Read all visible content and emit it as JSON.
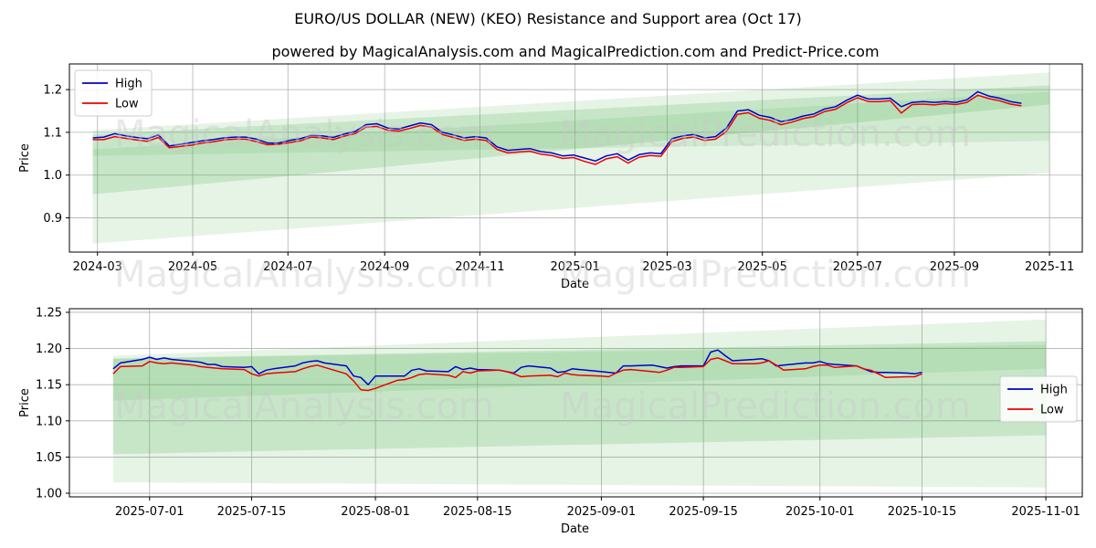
{
  "figure": {
    "title": "EURO/US DOLLAR (NEW) (KEO) Resistance and Support area (Oct 17)",
    "subtitle": "powered by MagicalAnalysis.com and MagicalPrediction.com and Predict-Price.com",
    "watermarks": [
      "MagicalAnalysis.com",
      "MagicalPrediction.com"
    ]
  },
  "colors": {
    "high": "#0000cc",
    "low": "#ee0000",
    "band": "#4caf50",
    "grid": "#b0b0b0"
  },
  "chart_data": [
    {
      "type": "line",
      "xlabel": "Date",
      "ylabel": "Price",
      "grid": true,
      "legend": {
        "placement": "top-left",
        "entries": [
          "High",
          "Low"
        ]
      },
      "xlim": [
        "2024-02-12",
        "2025-11-22"
      ],
      "ylim": [
        0.82,
        1.26
      ],
      "x_ticks": [
        "2024-03",
        "2024-05",
        "2024-07",
        "2024-09",
        "2024-11",
        "2025-01",
        "2025-03",
        "2025-05",
        "2025-07",
        "2025-09",
        "2025-11"
      ],
      "x_tick_dates": [
        "2024-03-01",
        "2024-05-01",
        "2024-07-01",
        "2024-09-01",
        "2024-11-01",
        "2025-01-01",
        "2025-03-01",
        "2025-05-01",
        "2025-07-01",
        "2025-09-01",
        "2025-11-01"
      ],
      "y_ticks": [
        "0.9",
        "1.0",
        "1.1",
        "1.2"
      ],
      "bands": [
        {
          "x": [
            "2024-02-27",
            "2025-11-01"
          ],
          "upper": [
            1.105,
            1.24
          ],
          "lower": [
            0.84,
            1.005
          ],
          "opacity": 0.14
        },
        {
          "x": [
            "2024-02-27",
            "2025-11-01"
          ],
          "upper": [
            1.095,
            1.21
          ],
          "lower": [
            0.955,
            1.165
          ],
          "opacity": 0.2
        },
        {
          "x": [
            "2024-02-27",
            "2025-11-01"
          ],
          "upper": [
            1.06,
            1.195
          ],
          "lower": [
            1.045,
            1.08
          ],
          "opacity": 0.14
        }
      ],
      "series": [
        {
          "name": "High",
          "x": [
            "2024-02-27",
            "2024-03-05",
            "2024-03-12",
            "2024-03-19",
            "2024-03-26",
            "2024-04-02",
            "2024-04-09",
            "2024-04-16",
            "2024-04-23",
            "2024-04-30",
            "2024-05-07",
            "2024-05-14",
            "2024-05-21",
            "2024-05-28",
            "2024-06-04",
            "2024-06-11",
            "2024-06-18",
            "2024-06-25",
            "2024-07-02",
            "2024-07-09",
            "2024-07-16",
            "2024-07-23",
            "2024-07-30",
            "2024-08-06",
            "2024-08-13",
            "2024-08-20",
            "2024-08-27",
            "2024-09-03",
            "2024-09-10",
            "2024-09-17",
            "2024-09-24",
            "2024-10-01",
            "2024-10-08",
            "2024-10-15",
            "2024-10-22",
            "2024-10-29",
            "2024-11-05",
            "2024-11-12",
            "2024-11-19",
            "2024-11-26",
            "2024-12-03",
            "2024-12-10",
            "2024-12-17",
            "2024-12-24",
            "2024-12-31",
            "2025-01-07",
            "2025-01-14",
            "2025-01-21",
            "2025-01-28",
            "2025-02-04",
            "2025-02-11",
            "2025-02-18",
            "2025-02-25",
            "2025-03-04",
            "2025-03-11",
            "2025-03-18",
            "2025-03-25",
            "2025-04-01",
            "2025-04-08",
            "2025-04-15",
            "2025-04-22",
            "2025-04-29",
            "2025-05-06",
            "2025-05-13",
            "2025-05-20",
            "2025-05-27",
            "2025-06-03",
            "2025-06-10",
            "2025-06-17",
            "2025-06-24",
            "2025-07-01",
            "2025-07-08",
            "2025-07-15",
            "2025-07-22",
            "2025-07-29",
            "2025-08-05",
            "2025-08-12",
            "2025-08-19",
            "2025-08-26",
            "2025-09-02",
            "2025-09-09",
            "2025-09-16",
            "2025-09-23",
            "2025-09-30",
            "2025-10-07",
            "2025-10-14"
          ],
          "values": [
            1.087,
            1.089,
            1.097,
            1.092,
            1.088,
            1.085,
            1.094,
            1.068,
            1.072,
            1.076,
            1.08,
            1.083,
            1.087,
            1.089,
            1.089,
            1.084,
            1.075,
            1.075,
            1.081,
            1.085,
            1.093,
            1.092,
            1.088,
            1.096,
            1.102,
            1.118,
            1.12,
            1.11,
            1.108,
            1.115,
            1.122,
            1.118,
            1.1,
            1.094,
            1.087,
            1.09,
            1.087,
            1.066,
            1.058,
            1.06,
            1.062,
            1.055,
            1.052,
            1.045,
            1.047,
            1.04,
            1.033,
            1.045,
            1.05,
            1.035,
            1.048,
            1.052,
            1.05,
            1.085,
            1.092,
            1.095,
            1.087,
            1.09,
            1.11,
            1.15,
            1.153,
            1.14,
            1.135,
            1.125,
            1.13,
            1.138,
            1.143,
            1.155,
            1.16,
            1.175,
            1.187,
            1.178,
            1.178,
            1.18,
            1.16,
            1.17,
            1.172,
            1.17,
            1.172,
            1.17,
            1.176,
            1.195,
            1.185,
            1.18,
            1.172,
            1.168
          ]
        },
        {
          "name": "Low",
          "x": [
            "2024-02-27",
            "2024-03-05",
            "2024-03-12",
            "2024-03-19",
            "2024-03-26",
            "2024-04-02",
            "2024-04-09",
            "2024-04-16",
            "2024-04-23",
            "2024-04-30",
            "2024-05-07",
            "2024-05-14",
            "2024-05-21",
            "2024-05-28",
            "2024-06-04",
            "2024-06-11",
            "2024-06-18",
            "2024-06-25",
            "2024-07-02",
            "2024-07-09",
            "2024-07-16",
            "2024-07-23",
            "2024-07-30",
            "2024-08-06",
            "2024-08-13",
            "2024-08-20",
            "2024-08-27",
            "2024-09-03",
            "2024-09-10",
            "2024-09-17",
            "2024-09-24",
            "2024-10-01",
            "2024-10-08",
            "2024-10-15",
            "2024-10-22",
            "2024-10-29",
            "2024-11-05",
            "2024-11-12",
            "2024-11-19",
            "2024-11-26",
            "2024-12-03",
            "2024-12-10",
            "2024-12-17",
            "2024-12-24",
            "2024-12-31",
            "2025-01-07",
            "2025-01-14",
            "2025-01-21",
            "2025-01-28",
            "2025-02-04",
            "2025-02-11",
            "2025-02-18",
            "2025-02-25",
            "2025-03-04",
            "2025-03-11",
            "2025-03-18",
            "2025-03-25",
            "2025-04-01",
            "2025-04-08",
            "2025-04-15",
            "2025-04-22",
            "2025-04-29",
            "2025-05-06",
            "2025-05-13",
            "2025-05-20",
            "2025-05-27",
            "2025-06-03",
            "2025-06-10",
            "2025-06-17",
            "2025-06-24",
            "2025-07-01",
            "2025-07-08",
            "2025-07-15",
            "2025-07-22",
            "2025-07-29",
            "2025-08-05",
            "2025-08-12",
            "2025-08-19",
            "2025-08-26",
            "2025-09-02",
            "2025-09-09",
            "2025-09-16",
            "2025-09-23",
            "2025-09-30",
            "2025-10-07",
            "2025-10-14"
          ],
          "values": [
            1.083,
            1.083,
            1.09,
            1.086,
            1.082,
            1.079,
            1.088,
            1.064,
            1.067,
            1.07,
            1.075,
            1.078,
            1.082,
            1.084,
            1.084,
            1.078,
            1.071,
            1.072,
            1.076,
            1.08,
            1.089,
            1.087,
            1.083,
            1.091,
            1.097,
            1.112,
            1.114,
            1.105,
            1.103,
            1.109,
            1.116,
            1.112,
            1.095,
            1.088,
            1.081,
            1.084,
            1.081,
            1.06,
            1.052,
            1.054,
            1.056,
            1.049,
            1.046,
            1.039,
            1.041,
            1.032,
            1.025,
            1.038,
            1.043,
            1.028,
            1.042,
            1.046,
            1.044,
            1.078,
            1.086,
            1.089,
            1.081,
            1.084,
            1.102,
            1.142,
            1.146,
            1.133,
            1.128,
            1.118,
            1.124,
            1.132,
            1.137,
            1.149,
            1.154,
            1.169,
            1.181,
            1.172,
            1.172,
            1.174,
            1.145,
            1.165,
            1.166,
            1.164,
            1.167,
            1.165,
            1.17,
            1.187,
            1.179,
            1.174,
            1.166,
            1.162
          ]
        }
      ]
    },
    {
      "type": "line",
      "xlabel": "Date",
      "ylabel": "Price",
      "grid": true,
      "legend": {
        "placement": "center-right",
        "entries": [
          "High",
          "Low"
        ]
      },
      "xlim": [
        "2025-06-20",
        "2025-11-06"
      ],
      "ylim": [
        0.995,
        1.255
      ],
      "x_ticks": [
        "2025-07-01",
        "2025-07-15",
        "2025-08-01",
        "2025-08-15",
        "2025-09-01",
        "2025-09-15",
        "2025-10-01",
        "2025-10-15",
        "2025-11-01"
      ],
      "y_ticks": [
        "1.00",
        "1.05",
        "1.10",
        "1.15",
        "1.20",
        "1.25"
      ],
      "bands": [
        {
          "x": [
            "2025-06-26",
            "2025-11-01"
          ],
          "upper": [
            1.19,
            1.24
          ],
          "lower": [
            1.015,
            1.008
          ],
          "opacity": 0.14
        },
        {
          "x": [
            "2025-06-26",
            "2025-11-01"
          ],
          "upper": [
            1.186,
            1.21
          ],
          "lower": [
            1.054,
            1.08
          ],
          "opacity": 0.2
        },
        {
          "x": [
            "2025-06-26",
            "2025-11-01"
          ],
          "upper": [
            1.186,
            1.205
          ],
          "lower": [
            1.128,
            1.172
          ],
          "opacity": 0.14
        }
      ],
      "series": [
        {
          "name": "High",
          "x": [
            "2025-06-26",
            "2025-06-27",
            "2025-06-30",
            "2025-07-01",
            "2025-07-02",
            "2025-07-03",
            "2025-07-04",
            "2025-07-07",
            "2025-07-08",
            "2025-07-09",
            "2025-07-10",
            "2025-07-11",
            "2025-07-14",
            "2025-07-15",
            "2025-07-16",
            "2025-07-17",
            "2025-07-18",
            "2025-07-21",
            "2025-07-22",
            "2025-07-23",
            "2025-07-24",
            "2025-07-25",
            "2025-07-28",
            "2025-07-29",
            "2025-07-30",
            "2025-07-31",
            "2025-08-01",
            "2025-08-04",
            "2025-08-05",
            "2025-08-06",
            "2025-08-07",
            "2025-08-08",
            "2025-08-11",
            "2025-08-12",
            "2025-08-13",
            "2025-08-14",
            "2025-08-15",
            "2025-08-18",
            "2025-08-19",
            "2025-08-20",
            "2025-08-21",
            "2025-08-22",
            "2025-08-25",
            "2025-08-26",
            "2025-08-27",
            "2025-08-28",
            "2025-08-29",
            "2025-09-01",
            "2025-09-02",
            "2025-09-03",
            "2025-09-04",
            "2025-09-05",
            "2025-09-08",
            "2025-09-09",
            "2025-09-10",
            "2025-09-11",
            "2025-09-12",
            "2025-09-15",
            "2025-09-16",
            "2025-09-17",
            "2025-09-18",
            "2025-09-19",
            "2025-09-22",
            "2025-09-23",
            "2025-09-24",
            "2025-09-25",
            "2025-09-26",
            "2025-09-29",
            "2025-09-30",
            "2025-10-01",
            "2025-10-02",
            "2025-10-03",
            "2025-10-06",
            "2025-10-07",
            "2025-10-08",
            "2025-10-09",
            "2025-10-10",
            "2025-10-13",
            "2025-10-14",
            "2025-10-15"
          ],
          "values": [
            1.172,
            1.18,
            1.185,
            1.188,
            1.185,
            1.187,
            1.185,
            1.182,
            1.181,
            1.178,
            1.178,
            1.175,
            1.174,
            1.175,
            1.165,
            1.17,
            1.172,
            1.176,
            1.18,
            1.182,
            1.183,
            1.18,
            1.176,
            1.162,
            1.16,
            1.15,
            1.162,
            1.162,
            1.162,
            1.17,
            1.172,
            1.169,
            1.168,
            1.175,
            1.171,
            1.173,
            1.171,
            1.17,
            1.168,
            1.166,
            1.174,
            1.176,
            1.173,
            1.167,
            1.168,
            1.172,
            1.171,
            1.168,
            1.167,
            1.166,
            1.176,
            1.176,
            1.177,
            1.175,
            1.173,
            1.175,
            1.176,
            1.176,
            1.195,
            1.198,
            1.19,
            1.183,
            1.185,
            1.186,
            1.183,
            1.176,
            1.177,
            1.18,
            1.18,
            1.182,
            1.179,
            1.178,
            1.176,
            1.172,
            1.168,
            1.167,
            1.167,
            1.166,
            1.165,
            1.167
          ]
        },
        {
          "name": "Low",
          "x": [
            "2025-06-26",
            "2025-06-27",
            "2025-06-30",
            "2025-07-01",
            "2025-07-02",
            "2025-07-03",
            "2025-07-04",
            "2025-07-07",
            "2025-07-08",
            "2025-07-09",
            "2025-07-10",
            "2025-07-11",
            "2025-07-14",
            "2025-07-15",
            "2025-07-16",
            "2025-07-17",
            "2025-07-18",
            "2025-07-21",
            "2025-07-22",
            "2025-07-23",
            "2025-07-24",
            "2025-07-25",
            "2025-07-28",
            "2025-07-29",
            "2025-07-30",
            "2025-07-31",
            "2025-08-01",
            "2025-08-04",
            "2025-08-05",
            "2025-08-06",
            "2025-08-07",
            "2025-08-08",
            "2025-08-11",
            "2025-08-12",
            "2025-08-13",
            "2025-08-14",
            "2025-08-15",
            "2025-08-18",
            "2025-08-19",
            "2025-08-20",
            "2025-08-21",
            "2025-08-22",
            "2025-08-25",
            "2025-08-26",
            "2025-08-27",
            "2025-08-28",
            "2025-08-29",
            "2025-09-01",
            "2025-09-02",
            "2025-09-03",
            "2025-09-04",
            "2025-09-05",
            "2025-09-08",
            "2025-09-09",
            "2025-09-10",
            "2025-09-11",
            "2025-09-12",
            "2025-09-15",
            "2025-09-16",
            "2025-09-17",
            "2025-09-18",
            "2025-09-19",
            "2025-09-22",
            "2025-09-23",
            "2025-09-24",
            "2025-09-25",
            "2025-09-26",
            "2025-09-29",
            "2025-09-30",
            "2025-10-01",
            "2025-10-02",
            "2025-10-03",
            "2025-10-06",
            "2025-10-07",
            "2025-10-08",
            "2025-10-09",
            "2025-10-10",
            "2025-10-13",
            "2025-10-14",
            "2025-10-15"
          ],
          "values": [
            1.165,
            1.175,
            1.176,
            1.182,
            1.18,
            1.179,
            1.18,
            1.177,
            1.175,
            1.174,
            1.173,
            1.172,
            1.171,
            1.165,
            1.162,
            1.165,
            1.166,
            1.168,
            1.172,
            1.175,
            1.177,
            1.174,
            1.165,
            1.155,
            1.143,
            1.142,
            1.145,
            1.156,
            1.157,
            1.16,
            1.164,
            1.165,
            1.163,
            1.16,
            1.168,
            1.166,
            1.169,
            1.17,
            1.168,
            1.165,
            1.161,
            1.162,
            1.163,
            1.161,
            1.166,
            1.164,
            1.163,
            1.162,
            1.161,
            1.166,
            1.17,
            1.171,
            1.168,
            1.167,
            1.17,
            1.174,
            1.174,
            1.175,
            1.185,
            1.187,
            1.183,
            1.179,
            1.179,
            1.18,
            1.183,
            1.177,
            1.17,
            1.172,
            1.175,
            1.177,
            1.177,
            1.174,
            1.176,
            1.172,
            1.17,
            1.165,
            1.16,
            1.161,
            1.161,
            1.165
          ]
        }
      ]
    }
  ]
}
